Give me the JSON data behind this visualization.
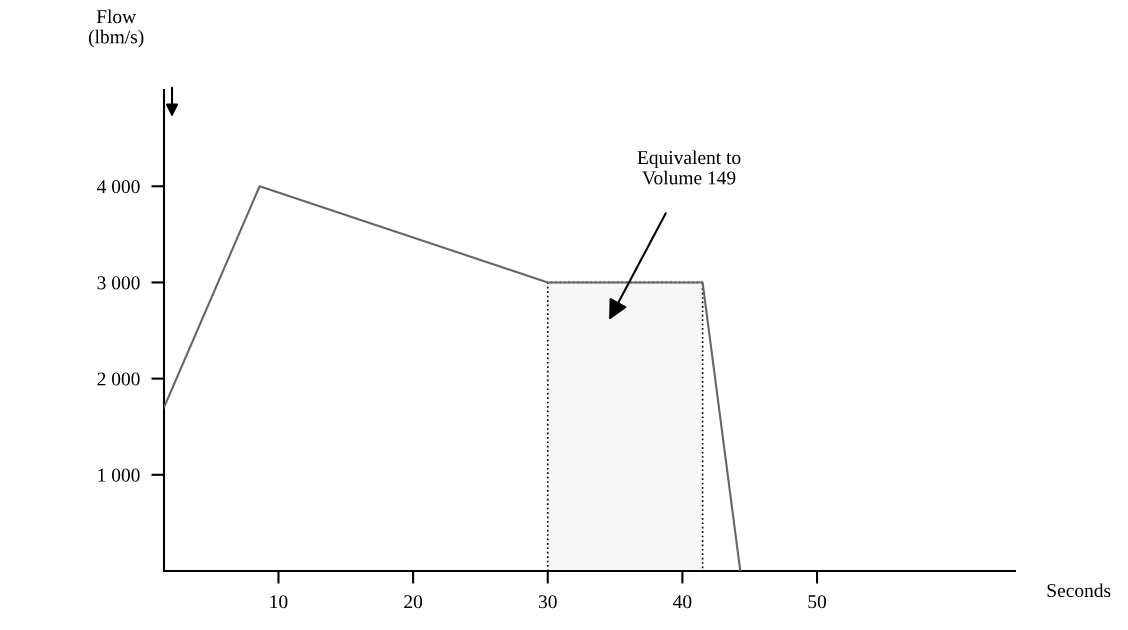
{
  "chart_data": {
    "type": "line",
    "xlabel": "Seconds",
    "ylabel": "Flow\n(lbm/s)",
    "series": [
      {
        "type": "area",
        "color": "#f7f7f7",
        "line_style": "dotted",
        "x": [
          30,
          41.5
        ],
        "values": [
          3000,
          3000
        ]
      },
      {
        "color": "#666666",
        "line_style": "solid",
        "x": [
          1.5,
          8.6,
          30,
          41.5,
          44.3
        ],
        "values": [
          1700,
          4000,
          3000,
          3000,
          0
        ]
      }
    ],
    "xlim": [
      1.5,
      64.7
    ],
    "ylim": [
      0,
      5000
    ],
    "xticks": [
      10,
      20,
      30,
      40,
      50
    ],
    "yticks": [
      {
        "value": 1000,
        "label": "1 000"
      },
      {
        "value": 2000,
        "label": "2 000"
      },
      {
        "value": 3000,
        "label": "3 000"
      },
      {
        "value": 4000,
        "label": "4 000"
      }
    ],
    "annotations": [
      "Equivalent to\nVolume 149"
    ],
    "grid": false,
    "legend": false
  }
}
